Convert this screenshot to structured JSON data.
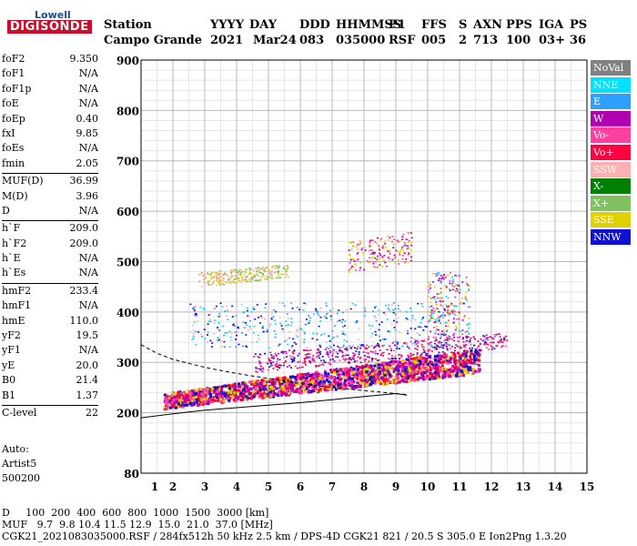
{
  "logo": {
    "line1": "Lowell",
    "line2": "DIGISONDE"
  },
  "header": {
    "row1": [
      "Station",
      "YYYY",
      "DAY",
      "DDD",
      "HHMMSS",
      "P1",
      "FFS",
      "S",
      "AXN",
      "PPS",
      "IGA",
      "PS"
    ],
    "row2": [
      "Campo Grande",
      "2021",
      "Mar24",
      "083",
      "035000",
      "RSF",
      "005",
      "2",
      "713",
      "100",
      "03+",
      "36"
    ]
  },
  "params": [
    [
      {
        "k": "foF2",
        "v": "9.350"
      },
      {
        "k": "foF1",
        "v": "N/A"
      },
      {
        "k": "foF1p",
        "v": "N/A"
      },
      {
        "k": "foE",
        "v": "N/A"
      },
      {
        "k": "foEp",
        "v": "0.40"
      },
      {
        "k": "fxI",
        "v": "9.85"
      },
      {
        "k": "foEs",
        "v": "N/A"
      },
      {
        "k": "fmin",
        "v": "2.05"
      }
    ],
    [
      {
        "k": "MUF(D)",
        "v": "36.99"
      },
      {
        "k": "M(D)",
        "v": "3.96"
      },
      {
        "k": "D",
        "v": "N/A"
      }
    ],
    [
      {
        "k": "h`F",
        "v": "209.0"
      },
      {
        "k": "h`F2",
        "v": "209.0"
      },
      {
        "k": "h`E",
        "v": "N/A"
      },
      {
        "k": "h`Es",
        "v": "N/A"
      }
    ],
    [
      {
        "k": "hmF2",
        "v": "233.4"
      },
      {
        "k": "hmF1",
        "v": "N/A"
      },
      {
        "k": "hmE",
        "v": "110.0"
      },
      {
        "k": "yF2",
        "v": "19.5"
      },
      {
        "k": "yF1",
        "v": "N/A"
      },
      {
        "k": "yE",
        "v": "20.0"
      },
      {
        "k": "B0",
        "v": "21.4"
      },
      {
        "k": "B1",
        "v": "1.37"
      }
    ],
    [
      {
        "k": "C-level",
        "v": "22"
      }
    ]
  ],
  "auto": {
    "line1": "Auto:",
    "line2": "Artist5",
    "line3": "500200"
  },
  "legend": [
    {
      "label": "NoVal",
      "color": "#808080"
    },
    {
      "label": "NNE",
      "color": "#00e0ff"
    },
    {
      "label": "E",
      "color": "#2fa0ff"
    },
    {
      "label": "W",
      "color": "#b000b0"
    },
    {
      "label": "Vo-",
      "color": "#ff40a0"
    },
    {
      "label": "Vo+",
      "color": "#ff0040"
    },
    {
      "label": "SSW",
      "color": "#ffb0b0"
    },
    {
      "label": "X-",
      "color": "#008000"
    },
    {
      "label": "X+",
      "color": "#80c060"
    },
    {
      "label": "SSE",
      "color": "#e0d000"
    },
    {
      "label": "NNW",
      "color": "#1010d0"
    }
  ],
  "footer": {
    "row1_label": "D",
    "row1_values": [
      "100",
      "200",
      "400",
      "600",
      "800",
      "1000",
      "1500",
      "3000"
    ],
    "row1_unit": "[km]",
    "row2_label": "MUF",
    "row2_values": [
      "9.7",
      "9.8",
      "10.4",
      "11.5",
      "12.9",
      "15.0",
      "21.0",
      "37.0"
    ],
    "row2_unit": "[MHz]",
    "row3": "CGK21_2021083035000.RSF / 284fx512h 50 kHz 2.5 km / DPS-4D CGK21 821 / 20.5 S 305.0 E Ion2Png 1.3.20"
  },
  "chart_data": {
    "type": "scatter",
    "xlim": [
      1,
      15
    ],
    "ylim": [
      80,
      900
    ],
    "xticks": [
      1,
      2,
      3,
      4,
      5,
      6,
      7,
      8,
      9,
      10,
      11,
      12,
      13,
      14,
      15
    ],
    "yticks": [
      80,
      200,
      300,
      400,
      500,
      600,
      700,
      800,
      900
    ],
    "grid": true,
    "regions": [
      {
        "name": "F2-trace",
        "x_range": [
          1.7,
          11.6
        ],
        "h_start": [
          210,
          240
        ],
        "h_end": [
          280,
          330
        ],
        "color_mix": [
          "#ff0040",
          "#ff40a0",
          "#e0d000",
          "#1010d0",
          "#b000b0"
        ]
      },
      {
        "name": "F2-upper",
        "x_range": [
          4.5,
          12.5
        ],
        "h_start": [
          280,
          320
        ],
        "h_end": [
          330,
          360
        ],
        "color_mix": [
          "#1010d0",
          "#ff0040",
          "#b000b0",
          "#ff40a0"
        ]
      },
      {
        "name": "second-hop",
        "x_range": [
          2.8,
          5.6
        ],
        "h_start": [
          450,
          480
        ],
        "h_end": [
          470,
          495
        ],
        "color_mix": [
          "#e0d000",
          "#80c060",
          "#ffb0b0"
        ]
      },
      {
        "name": "second-hop-upper",
        "x_range": [
          7.5,
          9.5
        ],
        "h_start": [
          480,
          540
        ],
        "h_end": [
          500,
          560
        ],
        "color_mix": [
          "#e0d000",
          "#b000b0",
          "#ff40a0"
        ]
      },
      {
        "name": "diffuse-mid",
        "x_range": [
          2.5,
          10.5
        ],
        "h_start": [
          330,
          420
        ],
        "h_end": [
          330,
          420
        ],
        "color_mix": [
          "#ffb0b0",
          "#2fa0ff",
          "#00e0ff",
          "#1010d0"
        ]
      },
      {
        "name": "spread-high",
        "x_range": [
          10,
          11.3
        ],
        "h_start": [
          330,
          480
        ],
        "h_end": [
          330,
          480
        ],
        "color_mix": [
          "#e0d000",
          "#ff40a0",
          "#00e0ff",
          "#b000b0"
        ]
      }
    ],
    "profile_curve": {
      "x": [
        1,
        2,
        3,
        4,
        5,
        6,
        7,
        8,
        9,
        9.35
      ],
      "y": [
        190,
        198,
        205,
        210,
        215,
        220,
        226,
        232,
        238,
        235
      ]
    },
    "dashed_curve": {
      "x": [
        1,
        1.5,
        2,
        2.5,
        3,
        3.5,
        4,
        5,
        6,
        7,
        8,
        9,
        9.35
      ],
      "y": [
        335,
        318,
        306,
        298,
        290,
        284,
        278,
        268,
        258,
        250,
        244,
        238,
        236
      ]
    }
  }
}
